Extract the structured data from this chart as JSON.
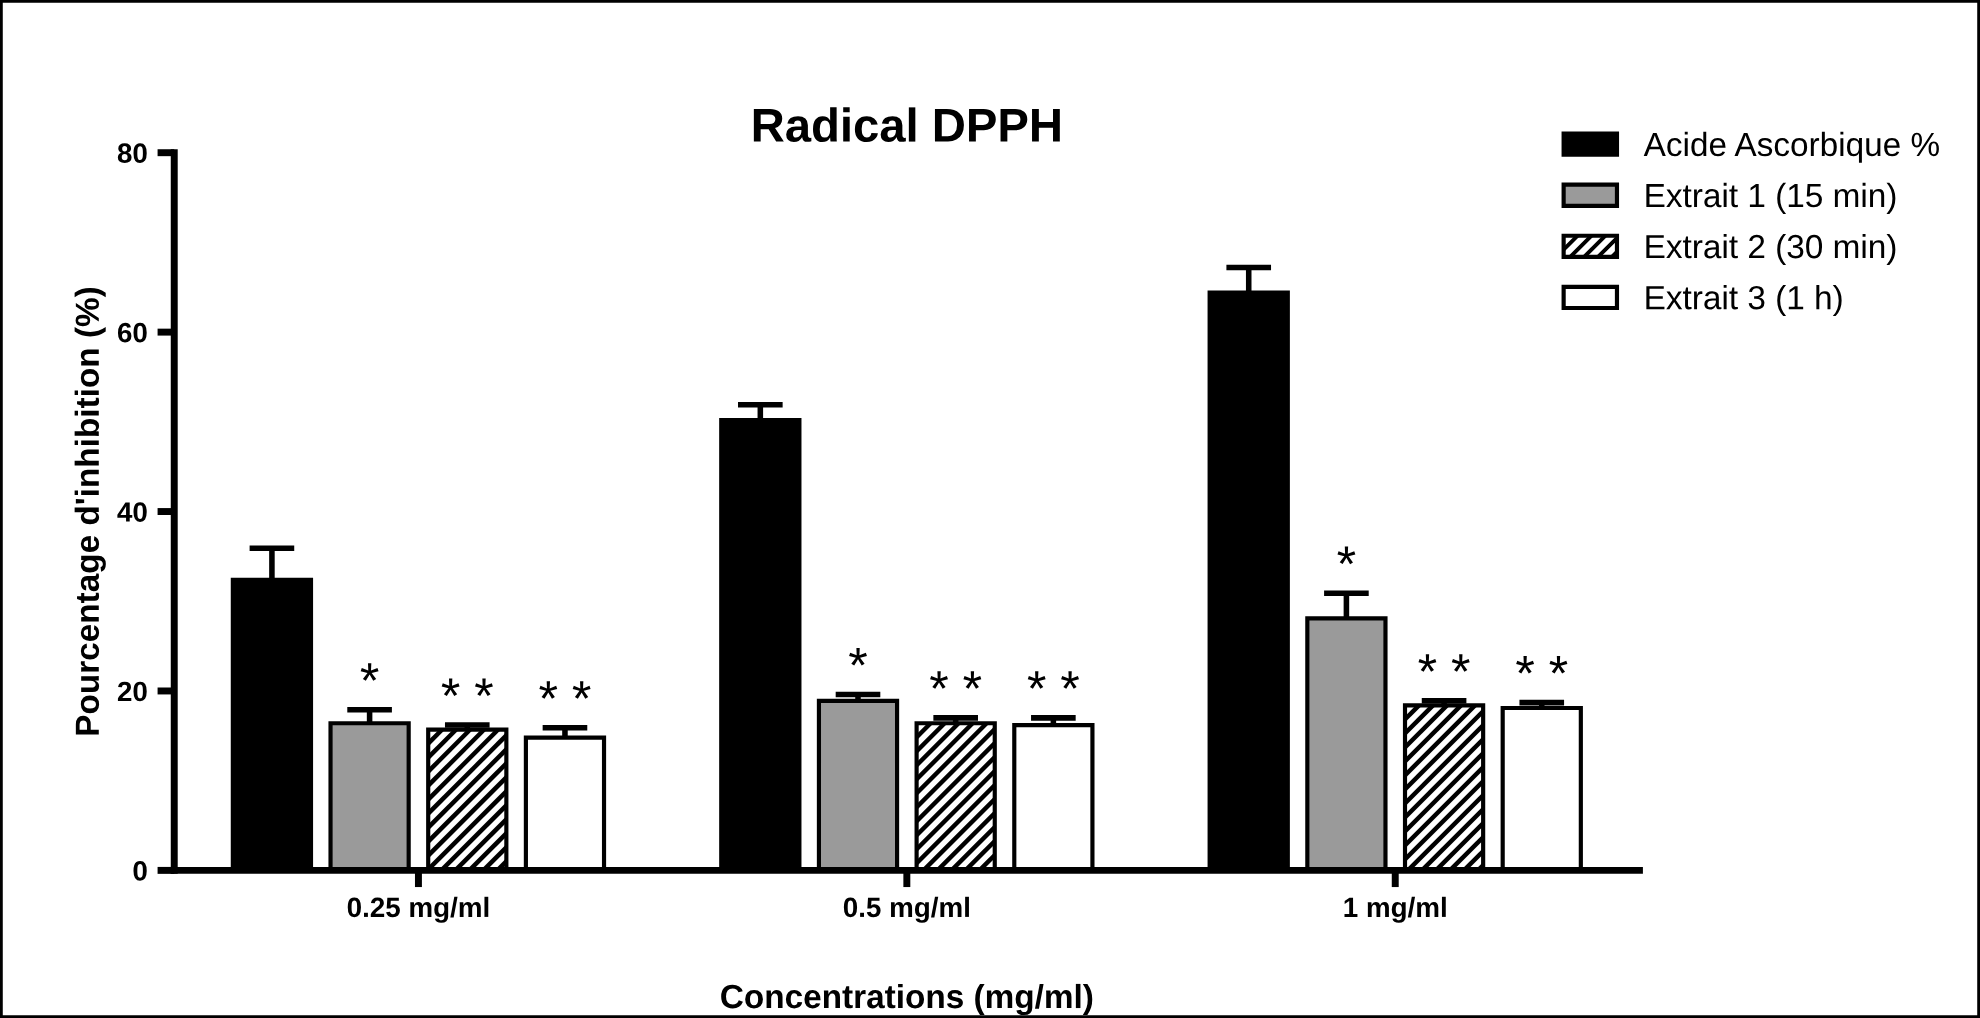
{
  "chart_data": {
    "type": "bar",
    "title": "Radical DPPH",
    "xlabel": "Concentrations (mg/ml)",
    "ylabel": "Pourcentage d'inhibition (%)",
    "categories": [
      "0.25 mg/ml",
      "0.5 mg/ml",
      "1 mg/ml"
    ],
    "series": [
      {
        "name": "Acide Ascorbique %",
        "color": "#000000",
        "values": [
          32.4,
          50.2,
          64.4
        ],
        "errors": [
          3.5,
          1.7,
          2.8
        ]
      },
      {
        "name": "Extrait 1 (15 min)",
        "color": "#9a9a9a",
        "values": [
          16.4,
          18.9,
          28.1
        ],
        "errors": [
          1.5,
          0.7,
          2.8
        ],
        "value_labels": [
          "*",
          "*",
          "*"
        ]
      },
      {
        "name": "Extrait 2 (30 min)",
        "color": "#ffffff",
        "values": [
          15.7,
          16.4,
          18.4
        ],
        "errors": [
          0.5,
          0.6,
          0.5
        ],
        "value_labels": [
          "* *",
          "* *",
          "* *"
        ]
      },
      {
        "name": "Extrait 3 (1 h)",
        "color": "#ffffff",
        "values": [
          14.8,
          16.2,
          18.1
        ],
        "errors": [
          1.1,
          0.8,
          0.6
        ],
        "value_labels": [
          "* *",
          "* *",
          "* *"
        ]
      }
    ],
    "ylim": [
      0,
      80
    ],
    "yticks": [
      0,
      20,
      40,
      60,
      80
    ],
    "grid": false,
    "legend": "top right"
  }
}
